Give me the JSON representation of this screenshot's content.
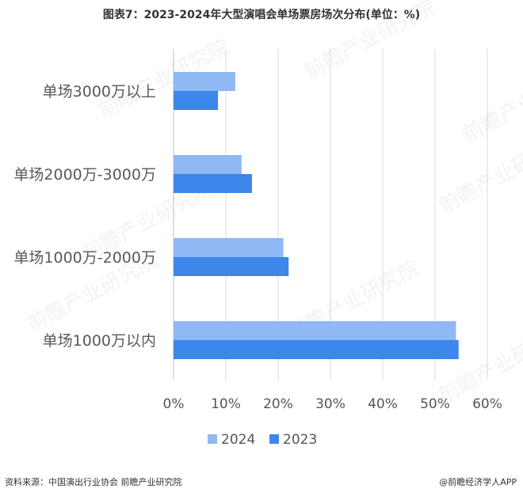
{
  "title": "图表7：2023-2024年大型演唱会单场票房场次分布(单位：%)",
  "source": "资料来源：中国演出行业协会 前瞻产业研究院",
  "brand": "@前瞻经济学人APP",
  "watermark": "前瞻产业研究院",
  "chart_data": {
    "type": "bar",
    "orientation": "horizontal",
    "categories": [
      "单场3000万以上",
      "单场2000万-3000万",
      "单场1000万-2000万",
      "单场1000万以内"
    ],
    "series": [
      {
        "name": "2024",
        "color": "#8fb8f5",
        "values": [
          11.8,
          13,
          21,
          54
        ]
      },
      {
        "name": "2023",
        "color": "#3d86ea",
        "values": [
          8.5,
          15,
          22,
          54.5
        ]
      }
    ],
    "xlim": [
      0,
      60
    ],
    "xticks": [
      "0%",
      "10%",
      "20%",
      "30%",
      "40%",
      "50%",
      "60%"
    ],
    "grid": true,
    "legend": "bottom"
  }
}
